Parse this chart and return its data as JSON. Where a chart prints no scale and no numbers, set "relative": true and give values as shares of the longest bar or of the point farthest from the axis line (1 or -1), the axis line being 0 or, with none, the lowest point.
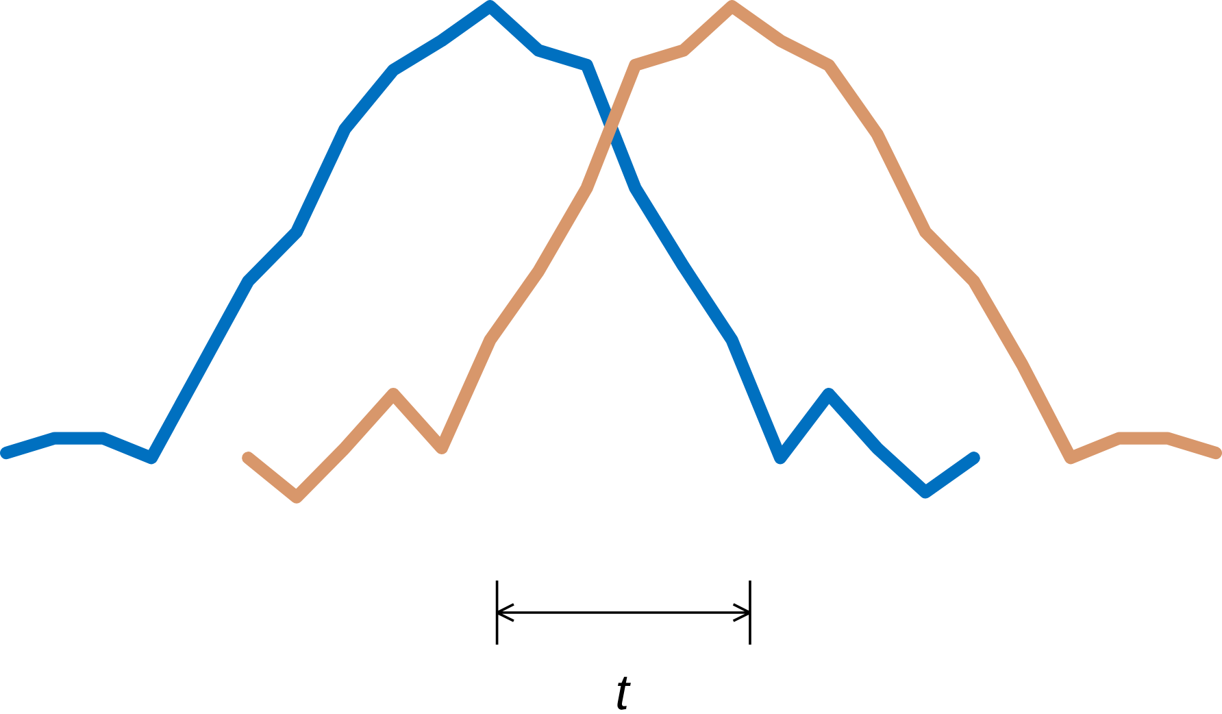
{
  "chart_data": {
    "type": "line",
    "relative": true,
    "marker": "none",
    "categories": [
      null,
      null,
      null,
      null,
      null,
      null,
      null,
      null,
      null,
      null,
      null,
      null,
      null,
      null,
      null,
      null,
      null,
      null,
      null,
      null,
      null,
      null,
      null,
      null,
      null,
      null
    ],
    "series": [
      {
        "color": "#0070c0",
        "values": [
          0.09,
          0.12,
          0.12,
          0.08,
          0.26,
          0.44,
          0.54,
          0.75,
          0.87,
          0.93,
          1,
          0.91,
          0.88,
          0.63,
          0.47,
          0.32,
          0.08,
          0.21,
          0.1,
          0.01,
          0.08,
          null,
          null,
          null,
          null,
          null
        ]
      },
      {
        "color": "#d8976b",
        "values": [
          null,
          null,
          null,
          null,
          null,
          0.08,
          0,
          0.1,
          0.21,
          0.1,
          0.32,
          0.46,
          0.63,
          0.88,
          0.91,
          1,
          0.93,
          0.88,
          0.74,
          0.54,
          0.44,
          0.27,
          0.08,
          0.12,
          0.12,
          0.09
        ]
      }
    ],
    "annotations": [
      "t"
    ]
  }
}
